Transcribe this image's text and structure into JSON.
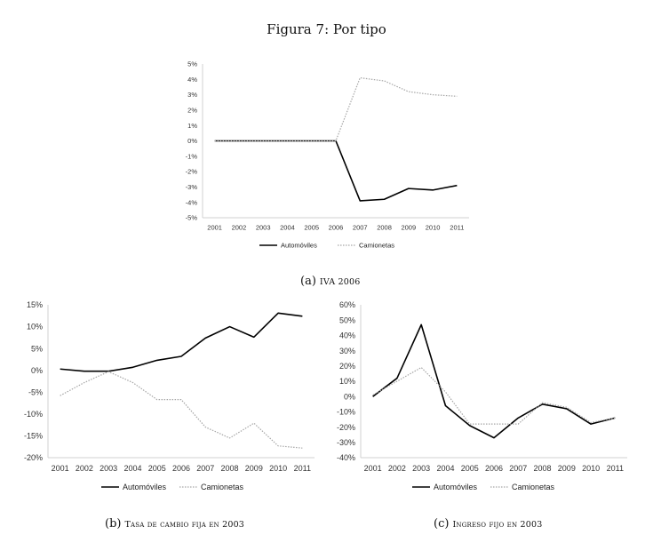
{
  "figure_title": "Figura 7: Por tipo",
  "captions": [
    {
      "label": "(a)",
      "text": "IVA 2006"
    },
    {
      "label": "(b)",
      "text": "Tasa de cambio fija en 2003"
    },
    {
      "label": "(c)",
      "text": "Ingreso fijo en 2003"
    }
  ],
  "colors": {
    "automoviles": "#000000",
    "camionetas": "#a6a6a6",
    "axis": "#d0d0d0"
  },
  "chart_data": [
    {
      "type": "line",
      "title": "",
      "x": [
        "2001",
        "2002",
        "2003",
        "2004",
        "2005",
        "2006",
        "2007",
        "2008",
        "2009",
        "2010",
        "2011"
      ],
      "ylim": [
        -5,
        5
      ],
      "yticks": [
        "5%",
        "4%",
        "3%",
        "2%",
        "1%",
        "0%",
        "-1%",
        "-2%",
        "-3%",
        "-4%",
        "-5%"
      ],
      "legend": "bottom",
      "series": [
        {
          "name": "Automóviles",
          "values": [
            0,
            0,
            0,
            0,
            0,
            0,
            -3.9,
            -3.8,
            -3.1,
            -3.2,
            -2.9
          ]
        },
        {
          "name": "Camionetas",
          "values": [
            0,
            0,
            0,
            0,
            0,
            0,
            4.1,
            3.9,
            3.2,
            3.0,
            2.9
          ]
        }
      ]
    },
    {
      "type": "line",
      "title": "",
      "x": [
        "2001",
        "2002",
        "2003",
        "2004",
        "2005",
        "2006",
        "2007",
        "2008",
        "2009",
        "2010",
        "2011"
      ],
      "ylim": [
        -20,
        15
      ],
      "yticks": [
        "15%",
        "10%",
        "5%",
        "0%",
        "-5%",
        "-10%",
        "-15%",
        "-20%"
      ],
      "legend": "bottom",
      "series": [
        {
          "name": "Automóviles",
          "values": [
            0.3,
            -0.2,
            -0.2,
            0.7,
            2.3,
            3.2,
            7.4,
            10.0,
            7.6,
            13.1,
            12.4
          ]
        },
        {
          "name": "Camionetas",
          "values": [
            -5.8,
            -2.8,
            -0.3,
            -2.8,
            -6.7,
            -6.7,
            -13.0,
            -15.5,
            -12.1,
            -17.3,
            -17.8
          ]
        }
      ]
    },
    {
      "type": "line",
      "title": "",
      "x": [
        "2001",
        "2002",
        "2003",
        "2004",
        "2005",
        "2006",
        "2007",
        "2008",
        "2009",
        "2010",
        "2011"
      ],
      "ylim": [
        -40,
        60
      ],
      "yticks": [
        "60%",
        "50%",
        "40%",
        "30%",
        "20%",
        "10%",
        "0%",
        "-10%",
        "-20%",
        "-30%",
        "-40%"
      ],
      "legend": "bottom",
      "series": [
        {
          "name": "Automóviles",
          "values": [
            0,
            12,
            47,
            -6,
            -19,
            -27,
            -14,
            -5,
            -8,
            -18,
            -14
          ]
        },
        {
          "name": "Camionetas",
          "values": [
            1,
            10,
            19,
            3,
            -18,
            -18,
            -18,
            -4,
            -7,
            -17,
            -14
          ]
        }
      ]
    }
  ]
}
